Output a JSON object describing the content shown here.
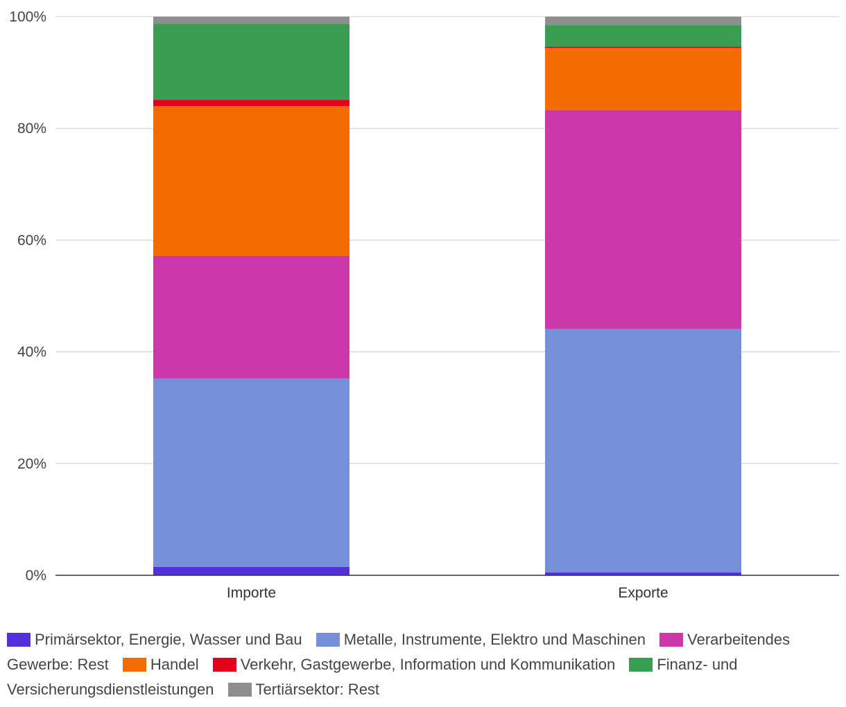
{
  "chart_data": {
    "type": "bar",
    "stacked": "percent",
    "title": "",
    "xlabel": "",
    "ylabel": "",
    "ylim": [
      0,
      100
    ],
    "yticks": [
      "0%",
      "20%",
      "40%",
      "60%",
      "80%",
      "100%"
    ],
    "categories": [
      "Importe",
      "Exporte"
    ],
    "series": [
      {
        "name": "Primärsektor, Energie, Wasser und Bau",
        "color": "#5430d8",
        "values": [
          1.5,
          0.5
        ]
      },
      {
        "name": "Metalle, Instrumente, Elektro und Maschinen",
        "color": "#758fd8",
        "values": [
          33.7,
          43.6
        ]
      },
      {
        "name": "Verarbeitendes Gewerbe: Rest",
        "color": "#cc38aa",
        "values": [
          22.0,
          39.2
        ]
      },
      {
        "name": "Handel",
        "color": "#f46b00",
        "values": [
          26.8,
          11.1
        ]
      },
      {
        "name": "Verkehr, Gastgewerbe, Information und Kommunikation",
        "color": "#e2001a",
        "values": [
          1.1,
          0.2
        ]
      },
      {
        "name": "Finanz- und Versicherungsdienstleistungen",
        "color": "#3a9e52",
        "values": [
          13.6,
          3.9
        ]
      },
      {
        "name": "Tertiärsektor: Rest",
        "color": "#8e8e8e",
        "values": [
          1.3,
          1.5
        ]
      }
    ],
    "legend_position": "bottom"
  }
}
